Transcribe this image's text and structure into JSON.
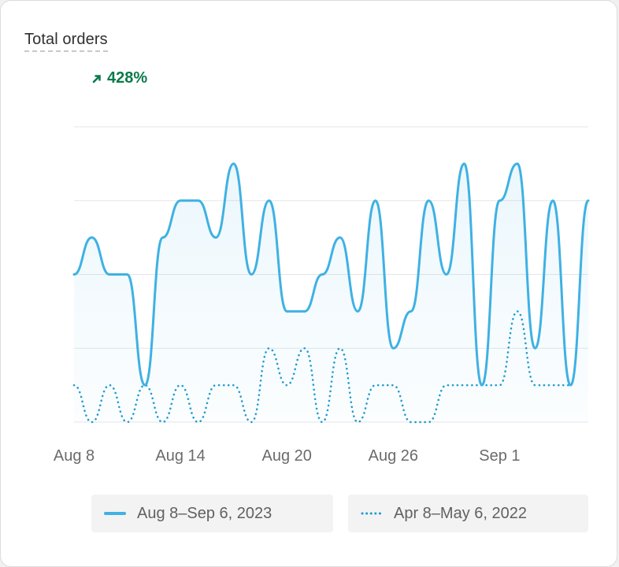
{
  "card": {
    "title": "Total orders"
  },
  "delta": {
    "value": "428%",
    "direction": "up",
    "icon": "arrow-up-right-icon",
    "color": "#0a7a4a"
  },
  "chart_data": {
    "type": "line",
    "title": "Total orders",
    "xlabel": "",
    "ylabel": "",
    "y_gridlines": 5,
    "x_ticks": [
      "Aug 8",
      "Aug 14",
      "Aug 20",
      "Aug 26",
      "Sep 1"
    ],
    "ylim": [
      0,
      8
    ],
    "grid": true,
    "legend_position": "bottom",
    "series": [
      {
        "name": "Aug 8–Sep 6, 2023",
        "style": "solid",
        "color": "#3fb1e3",
        "area_fill": true,
        "x": [
          "Aug 8",
          "Aug 9",
          "Aug 10",
          "Aug 11",
          "Aug 12",
          "Aug 13",
          "Aug 14",
          "Aug 15",
          "Aug 16",
          "Aug 17",
          "Aug 18",
          "Aug 19",
          "Aug 20",
          "Aug 21",
          "Aug 22",
          "Aug 23",
          "Aug 24",
          "Aug 25",
          "Aug 26",
          "Aug 27",
          "Aug 28",
          "Aug 29",
          "Aug 30",
          "Aug 31",
          "Sep 1",
          "Sep 2",
          "Sep 3",
          "Sep 4",
          "Sep 5",
          "Sep 6"
        ],
        "values": [
          4,
          5,
          4,
          4,
          1,
          5,
          6,
          6,
          5,
          7,
          4,
          6,
          3,
          3,
          4,
          5,
          3,
          6,
          2,
          3,
          6,
          4,
          7,
          1,
          6,
          7,
          2,
          6,
          1,
          6
        ]
      },
      {
        "name": "Apr 8–May 6, 2022",
        "style": "dotted",
        "color": "#1f9bd1",
        "x": [
          "Apr 8",
          "Apr 9",
          "Apr 10",
          "Apr 11",
          "Apr 12",
          "Apr 13",
          "Apr 14",
          "Apr 15",
          "Apr 16",
          "Apr 17",
          "Apr 18",
          "Apr 19",
          "Apr 20",
          "Apr 21",
          "Apr 22",
          "Apr 23",
          "Apr 24",
          "Apr 25",
          "Apr 26",
          "Apr 27",
          "Apr 28",
          "Apr 29",
          "Apr 30",
          "May 1",
          "May 2",
          "May 3",
          "May 4",
          "May 5",
          "May 6"
        ],
        "values": [
          1,
          0,
          1,
          0,
          1,
          0,
          1,
          0,
          1,
          1,
          0,
          2,
          1,
          2,
          0,
          2,
          0,
          1,
          1,
          0,
          0,
          1,
          1,
          1,
          1,
          3,
          1,
          1,
          1
        ]
      }
    ]
  },
  "legend": {
    "current_label": "Aug 8–Sep 6, 2023",
    "previous_label": "Apr 8–May 6, 2022"
  }
}
